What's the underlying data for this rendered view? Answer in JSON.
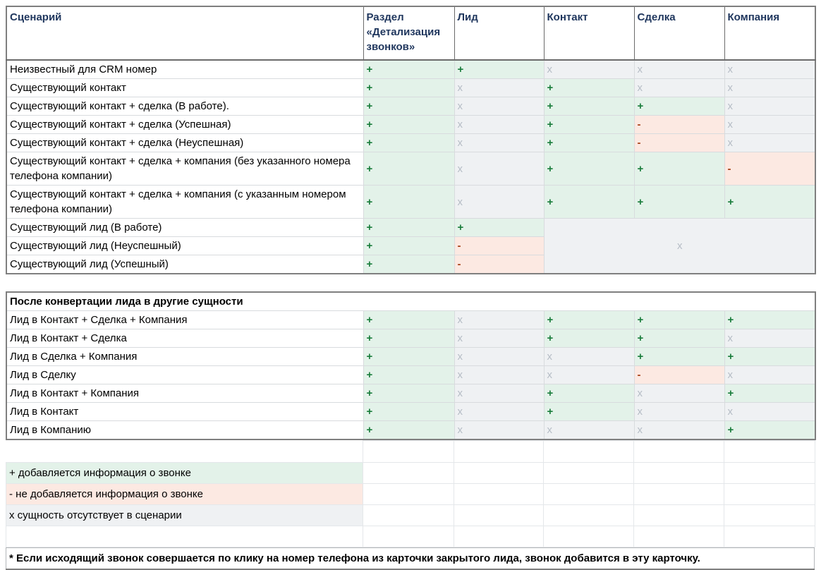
{
  "columns": [
    "Сценарий",
    "Раздел «Детализация звонков»",
    "Лид",
    "Контакт",
    "Сделка",
    "Компания"
  ],
  "scenarios_table": {
    "rows": [
      {
        "label": "Неизвестный для CRM номер",
        "values": [
          "+",
          "+",
          "x",
          "x",
          "x"
        ]
      },
      {
        "label": "Существующий контакт",
        "values": [
          "+",
          "x",
          "+",
          "x",
          "x"
        ]
      },
      {
        "label": "Существующий контакт + сделка (В работе).",
        "values": [
          "+",
          "x",
          "+",
          "+",
          "x"
        ]
      },
      {
        "label": "Существующий контакт + сделка (Успешная)",
        "values": [
          "+",
          "x",
          "+",
          "-",
          "x"
        ]
      },
      {
        "label": "Существующий контакт + сделка (Неуспешная)",
        "values": [
          "+",
          "x",
          "+",
          "-",
          "x"
        ]
      },
      {
        "label": "Существующий контакт + сделка + компания (без указанного номера телефона компании)",
        "values": [
          "+",
          "x",
          "+",
          "+",
          "-"
        ]
      },
      {
        "label": "Существующий контакт + сделка + компания (с указанным номером телефона компании)",
        "values": [
          "+",
          "x",
          "+",
          "+",
          "+"
        ]
      },
      {
        "label": "Существующий лид (В работе)",
        "values": [
          "+",
          "+"
        ]
      },
      {
        "label": "Существующий лид (Неуспешный)",
        "values": [
          "+",
          "-"
        ]
      },
      {
        "label": "Существующий лид (Успешный)",
        "values": [
          "+",
          "-"
        ]
      }
    ],
    "merged_cell": {
      "value": "x",
      "row_index": 7,
      "rowspan": 3,
      "colspan": 3
    }
  },
  "conversion_table": {
    "section_title": "После конвертации лида в другие сущности",
    "rows": [
      {
        "label": "Лид в Контакт + Сделка + Компания",
        "values": [
          "+",
          "x",
          "+",
          "+",
          "+"
        ]
      },
      {
        "label": "Лид в Контакт + Сделка",
        "values": [
          "+",
          "x",
          "+",
          "+",
          "x"
        ]
      },
      {
        "label": "Лид в Сделка + Компания",
        "values": [
          "+",
          "x",
          "x",
          "+",
          "+"
        ]
      },
      {
        "label": "Лид в Сделку",
        "values": [
          "+",
          "x",
          "x",
          "-",
          "x"
        ]
      },
      {
        "label": "Лид в Контакт + Компания",
        "values": [
          "+",
          "x",
          "+",
          "x",
          "+"
        ]
      },
      {
        "label": "Лид в Контакт",
        "values": [
          "+",
          "x",
          "+",
          "x",
          "x"
        ]
      },
      {
        "label": "Лид в Компанию",
        "values": [
          "+",
          "x",
          "x",
          "x",
          "+"
        ]
      }
    ]
  },
  "legend": {
    "items": [
      {
        "symbol": "+",
        "text": "+ добавляется информация о звонке",
        "type": "plus"
      },
      {
        "symbol": "-",
        "text": "- не добавляется информация о звонке",
        "type": "minus"
      },
      {
        "symbol": "x",
        "text": "x сущность отсутствует в сценарии",
        "type": "x"
      }
    ]
  },
  "footnote": "* Если исходящий звонок совершается по клику на номер телефона из карточки закрытого лида, звонок добавится в эту карточку.",
  "colors": {
    "green_bg": "#e3f2e9",
    "red_bg": "#fce9e2",
    "gray_bg": "#eff1f3",
    "plus_text": "#187c3a",
    "minus_text": "#a8431a",
    "x_text": "#b6bdc6",
    "header_text": "#20375e"
  }
}
